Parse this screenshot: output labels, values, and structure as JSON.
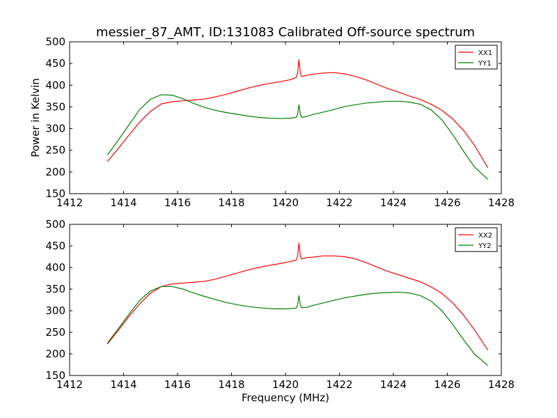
{
  "figure": {
    "title": "messier_87_AMT, ID:131083 Calibrated Off-source spectrum"
  },
  "chart_data": [
    {
      "type": "line",
      "title": "messier_87_AMT, ID:131083 Calibrated Off-source spectrum",
      "xlabel": "",
      "ylabel": "Power in Kelvin",
      "xlim": [
        1412,
        1428
      ],
      "ylim": [
        150,
        500
      ],
      "xticks": [
        1412,
        1414,
        1416,
        1418,
        1420,
        1422,
        1424,
        1426,
        1428
      ],
      "yticks": [
        150,
        200,
        250,
        300,
        350,
        400,
        450,
        500
      ],
      "legend_position": "top-right",
      "grid": false,
      "series": [
        {
          "name": "XX1",
          "color": "#ff0000",
          "x": [
            1413.4,
            1413.8,
            1414.2,
            1414.6,
            1415.0,
            1415.4,
            1415.8,
            1416.2,
            1416.6,
            1417.0,
            1417.4,
            1417.8,
            1418.2,
            1418.6,
            1419.0,
            1419.4,
            1419.8,
            1420.2,
            1420.4,
            1420.45,
            1420.5,
            1420.55,
            1420.6,
            1420.8,
            1421.0,
            1421.4,
            1421.8,
            1422.2,
            1422.6,
            1423.0,
            1423.4,
            1423.8,
            1424.2,
            1424.6,
            1425.0,
            1425.4,
            1425.8,
            1426.2,
            1426.6,
            1427.0,
            1427.5
          ],
          "y": [
            224,
            254,
            285,
            315,
            340,
            357,
            362,
            364,
            366,
            368,
            373,
            379,
            386,
            393,
            399,
            404,
            408,
            413,
            418,
            428,
            459,
            428,
            420,
            423,
            425,
            428,
            429,
            426,
            420,
            412,
            402,
            392,
            384,
            375,
            367,
            356,
            342,
            322,
            296,
            262,
            210
          ]
        },
        {
          "name": "YY1",
          "color": "#007f00",
          "x": [
            1413.4,
            1413.8,
            1414.2,
            1414.6,
            1415.0,
            1415.4,
            1415.8,
            1416.2,
            1416.6,
            1417.0,
            1417.4,
            1417.8,
            1418.2,
            1418.6,
            1419.0,
            1419.4,
            1419.8,
            1420.2,
            1420.4,
            1420.45,
            1420.5,
            1420.55,
            1420.6,
            1420.8,
            1421.0,
            1421.4,
            1421.8,
            1422.2,
            1422.6,
            1423.0,
            1423.4,
            1423.8,
            1424.2,
            1424.6,
            1425.0,
            1425.4,
            1425.8,
            1426.2,
            1426.6,
            1427.0,
            1427.5
          ],
          "y": [
            239,
            273,
            309,
            344,
            368,
            378,
            377,
            369,
            358,
            349,
            342,
            337,
            333,
            329,
            326,
            324,
            323,
            324,
            326,
            333,
            355,
            333,
            326,
            328,
            332,
            338,
            344,
            351,
            355,
            359,
            361,
            363,
            363,
            361,
            356,
            343,
            320,
            286,
            248,
            212,
            183
          ]
        }
      ]
    },
    {
      "type": "line",
      "title": "",
      "xlabel": "Frequency (MHz)",
      "ylabel": "",
      "xlim": [
        1412,
        1428
      ],
      "ylim": [
        150,
        500
      ],
      "xticks": [
        1412,
        1414,
        1416,
        1418,
        1420,
        1422,
        1424,
        1426,
        1428
      ],
      "yticks": [
        150,
        200,
        250,
        300,
        350,
        400,
        450,
        500
      ],
      "legend_position": "top-right",
      "grid": false,
      "series": [
        {
          "name": "XX2",
          "color": "#ff0000",
          "x": [
            1413.4,
            1413.8,
            1414.2,
            1414.6,
            1415.0,
            1415.4,
            1415.8,
            1416.2,
            1416.6,
            1417.0,
            1417.4,
            1417.8,
            1418.2,
            1418.6,
            1419.0,
            1419.4,
            1419.8,
            1420.2,
            1420.4,
            1420.45,
            1420.5,
            1420.55,
            1420.6,
            1420.8,
            1421.0,
            1421.4,
            1421.8,
            1422.2,
            1422.6,
            1423.0,
            1423.4,
            1423.8,
            1424.2,
            1424.6,
            1425.0,
            1425.4,
            1425.8,
            1426.2,
            1426.6,
            1427.0,
            1427.5
          ],
          "y": [
            223,
            254,
            287,
            316,
            341,
            356,
            362,
            364,
            366,
            368,
            373,
            380,
            387,
            394,
            400,
            405,
            409,
            414,
            417,
            427,
            457,
            427,
            420,
            423,
            424,
            427,
            427,
            425,
            420,
            411,
            401,
            391,
            383,
            375,
            367,
            355,
            340,
            318,
            290,
            256,
            209
          ]
        },
        {
          "name": "YY2",
          "color": "#007f00",
          "x": [
            1413.4,
            1413.8,
            1414.2,
            1414.6,
            1415.0,
            1415.4,
            1415.8,
            1416.2,
            1416.6,
            1417.0,
            1417.4,
            1417.8,
            1418.2,
            1418.6,
            1419.0,
            1419.4,
            1419.8,
            1420.2,
            1420.4,
            1420.45,
            1420.5,
            1420.55,
            1420.6,
            1420.8,
            1421.0,
            1421.4,
            1421.8,
            1422.2,
            1422.6,
            1423.0,
            1423.4,
            1423.8,
            1424.2,
            1424.6,
            1425.0,
            1425.4,
            1425.8,
            1426.2,
            1426.6,
            1427.0,
            1427.5
          ],
          "y": [
            225,
            258,
            292,
            324,
            346,
            356,
            356,
            350,
            341,
            333,
            326,
            319,
            314,
            310,
            307,
            305,
            304,
            305,
            306,
            314,
            335,
            314,
            307,
            308,
            312,
            318,
            324,
            330,
            334,
            338,
            341,
            342,
            343,
            341,
            335,
            322,
            300,
            268,
            233,
            200,
            173
          ]
        }
      ]
    }
  ]
}
